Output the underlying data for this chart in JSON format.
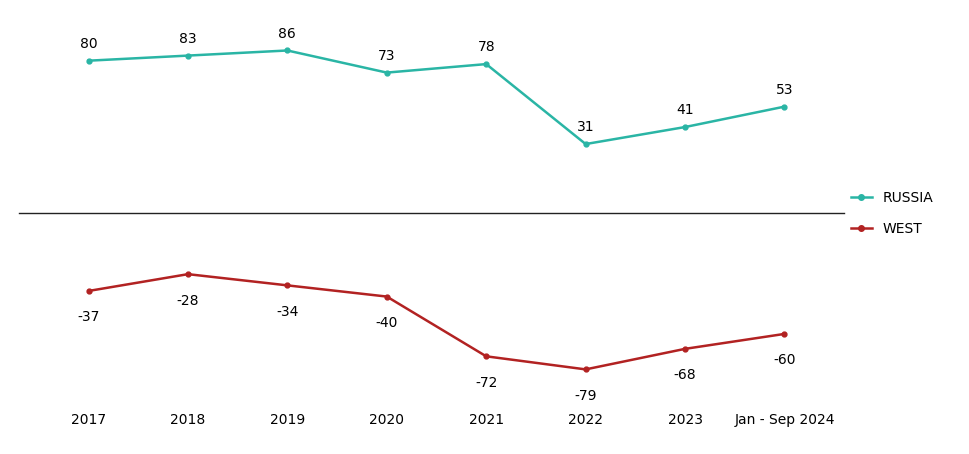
{
  "x_labels": [
    "2017",
    "2018",
    "2019",
    "2020",
    "2021",
    "2022",
    "2023",
    "Jan - Sep 2024"
  ],
  "x_positions": [
    0,
    1,
    2,
    3,
    4,
    5,
    6,
    7
  ],
  "russia_values": [
    80,
    83,
    86,
    73,
    78,
    31,
    41,
    53
  ],
  "west_values": [
    -37,
    -28,
    -34,
    -40,
    -72,
    -79,
    -68,
    -60
  ],
  "russia_color": "#2ab5a5",
  "west_color": "#b22222",
  "divider_color": "#222222",
  "russia_label": "RUSSIA",
  "west_label": "WEST",
  "tick_fontsize": 10,
  "annotation_fontsize": 10,
  "legend_fontsize": 10,
  "background_color": "#ffffff",
  "linewidth": 1.8
}
